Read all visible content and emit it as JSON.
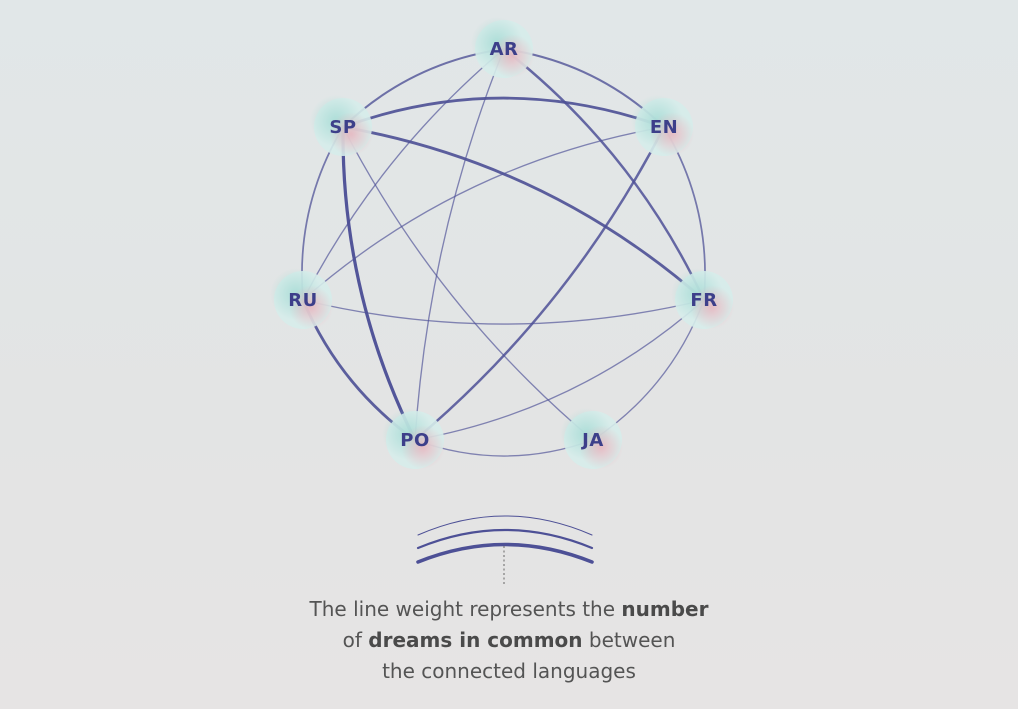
{
  "nodes": [
    {
      "id": "AR",
      "label": "AR"
    },
    {
      "id": "EN",
      "label": "EN"
    },
    {
      "id": "FR",
      "label": "FR"
    },
    {
      "id": "JA",
      "label": "JA"
    },
    {
      "id": "PO",
      "label": "PO"
    },
    {
      "id": "RU",
      "label": "RU"
    },
    {
      "id": "SP",
      "label": "SP"
    }
  ],
  "edges": [
    {
      "source": "AR",
      "target": "SP",
      "weight": 2
    },
    {
      "source": "AR",
      "target": "EN",
      "weight": 2
    },
    {
      "source": "AR",
      "target": "FR",
      "weight": 2.5
    },
    {
      "source": "AR",
      "target": "RU",
      "weight": 1
    },
    {
      "source": "AR",
      "target": "PO",
      "weight": 1
    },
    {
      "source": "SP",
      "target": "EN",
      "weight": 3
    },
    {
      "source": "SP",
      "target": "FR",
      "weight": 3
    },
    {
      "source": "SP",
      "target": "RU",
      "weight": 1.5
    },
    {
      "source": "SP",
      "target": "PO",
      "weight": 3.5
    },
    {
      "source": "SP",
      "target": "JA",
      "weight": 1
    },
    {
      "source": "EN",
      "target": "RU",
      "weight": 1
    },
    {
      "source": "EN",
      "target": "PO",
      "weight": 2.5
    },
    {
      "source": "EN",
      "target": "FR",
      "weight": 1.5
    },
    {
      "source": "FR",
      "target": "PO",
      "weight": 1
    },
    {
      "source": "FR",
      "target": "JA",
      "weight": 1
    },
    {
      "source": "FR",
      "target": "RU",
      "weight": 1
    },
    {
      "source": "RU",
      "target": "PO",
      "weight": 3
    },
    {
      "source": "PO",
      "target": "JA",
      "weight": 1
    }
  ],
  "colors": {
    "edge": "#4d5096",
    "label": "#3d3f8a",
    "node_glow_a": "#a5dcd4",
    "node_glow_b": "#eba8b4"
  },
  "legend": {
    "line1_a": "The line weight represents the ",
    "line1_b": "number",
    "line2_a": "of ",
    "line2_b": "dreams in common",
    "line2_c": " between",
    "line3": "the connected languages"
  }
}
